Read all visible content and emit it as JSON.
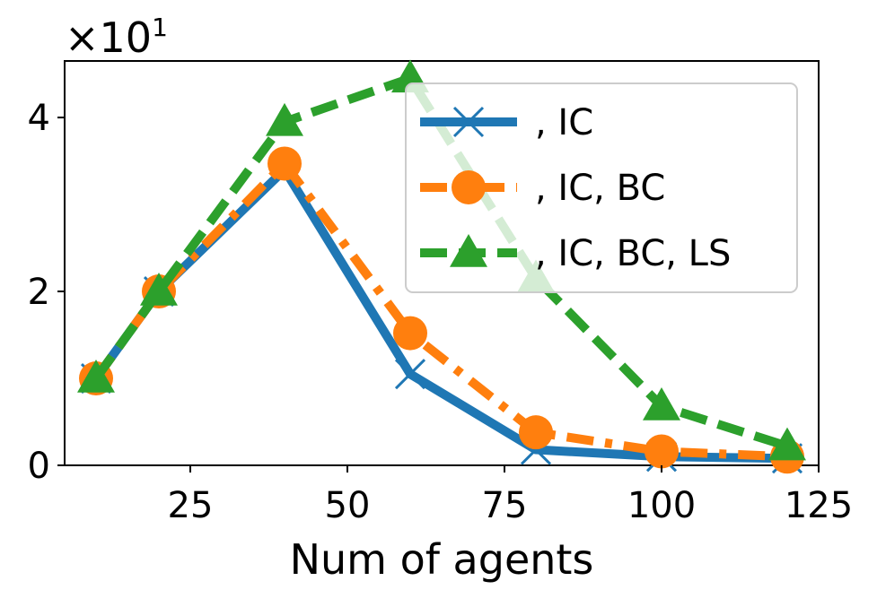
{
  "chart_data": {
    "type": "line",
    "title": "",
    "xlabel": "Num of agents",
    "ylabel": "",
    "scale_label": "×10",
    "scale_exponent": "1",
    "x": [
      10,
      20,
      40,
      60,
      80,
      100,
      120
    ],
    "xlim": [
      5,
      125
    ],
    "ylim": [
      0,
      4.65
    ],
    "xticks": [
      25,
      50,
      75,
      100,
      125
    ],
    "yticks": [
      0,
      2,
      4
    ],
    "grid": false,
    "legend_position": "top-right",
    "series": [
      {
        "name": ", IC",
        "color": "#1f77b4",
        "marker": "x",
        "linestyle": "solid",
        "values": [
          1.0,
          2.0,
          3.4,
          1.05,
          0.18,
          0.1,
          0.08
        ]
      },
      {
        "name": ", IC, BC",
        "color": "#ff7f0e",
        "marker": "circle",
        "linestyle": "dashdot",
        "values": [
          1.0,
          2.0,
          3.47,
          1.52,
          0.38,
          0.16,
          0.1
        ]
      },
      {
        "name": ", IC, BC, LS",
        "color": "#2ca02c",
        "marker": "triangle",
        "linestyle": "dashed",
        "values": [
          1.0,
          2.0,
          3.95,
          4.45,
          2.15,
          0.68,
          0.22
        ]
      }
    ]
  }
}
